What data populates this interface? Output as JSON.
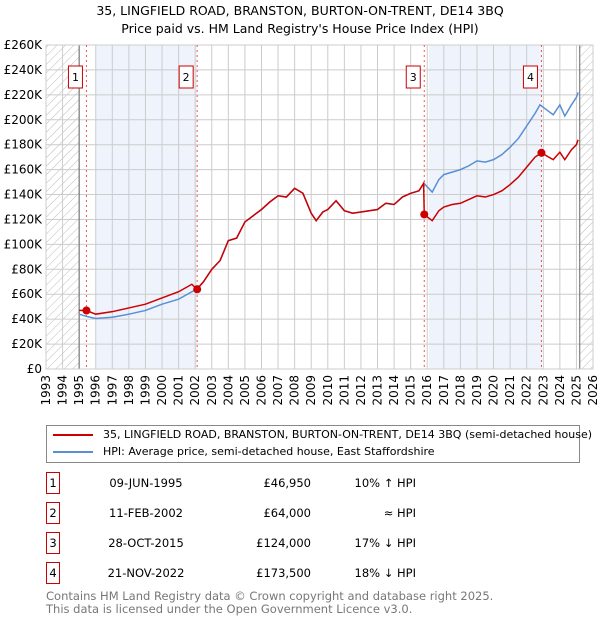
{
  "chart_data": {
    "type": "line",
    "title": "35, LINGFIELD ROAD, BRANSTON, BURTON-ON-TRENT, DE14 3BQ",
    "subtitle": "Price paid vs. HM Land Registry's House Price Index (HPI)",
    "xlim": [
      1993,
      2026
    ],
    "ylim": [
      0,
      260000
    ],
    "grid": true,
    "x_ticks": [
      "1993",
      "1994",
      "1995",
      "1996",
      "1997",
      "1998",
      "1999",
      "2000",
      "2001",
      "2002",
      "2003",
      "2004",
      "2005",
      "2006",
      "2007",
      "2008",
      "2009",
      "2010",
      "2011",
      "2012",
      "2013",
      "2014",
      "2015",
      "2016",
      "2017",
      "2018",
      "2019",
      "2020",
      "2021",
      "2022",
      "2023",
      "2024",
      "2025",
      "2026"
    ],
    "y_ticks": [
      "£0",
      "£20K",
      "£40K",
      "£60K",
      "£80K",
      "£100K",
      "£120K",
      "£140K",
      "£160K",
      "£180K",
      "£200K",
      "£220K",
      "£240K",
      "£260K"
    ],
    "shaded_ranges": [
      [
        1996.0,
        2002.1
      ],
      [
        2016.1,
        2022.9
      ]
    ],
    "hatched_ranges": [
      [
        1993,
        1995.0
      ],
      [
        2025.2,
        2026
      ]
    ],
    "series": [
      {
        "name": "35, LINGFIELD ROAD, BRANSTON, BURTON-ON-TRENT, DE14 3BQ (semi-detached house)",
        "color": "#cc0000",
        "x": [
          1995.0,
          1995.44,
          1996,
          1997,
          1998,
          1999,
          2000,
          2001,
          2001.8,
          2002.1,
          2002.5,
          2003,
          2003.5,
          2004,
          2004.5,
          2005,
          2005.5,
          2006,
          2006.5,
          2007,
          2007.5,
          2008,
          2008.5,
          2009,
          2009.3,
          2009.7,
          2010,
          2010.5,
          2011,
          2011.5,
          2012,
          2012.5,
          2013,
          2013.5,
          2014,
          2014.5,
          2015,
          2015.5,
          2015.78,
          2015.82,
          2016.3,
          2016.7,
          2017,
          2017.5,
          2018,
          2018.5,
          2019,
          2019.5,
          2020,
          2020.5,
          2021,
          2021.5,
          2022,
          2022.5,
          2022.89,
          2023.2,
          2023.6,
          2024,
          2024.3,
          2024.7,
          2025,
          2025.1
        ],
        "y": [
          47000,
          46950,
          44000,
          46000,
          49000,
          52000,
          57000,
          62000,
          68000,
          64000,
          70000,
          80000,
          87000,
          103000,
          105000,
          118000,
          123000,
          128000,
          134000,
          139000,
          138000,
          145000,
          141000,
          125000,
          119000,
          126000,
          128000,
          135000,
          127000,
          125000,
          126000,
          127000,
          128000,
          133000,
          132000,
          138000,
          141000,
          143000,
          149000,
          124000,
          119000,
          127000,
          130000,
          132000,
          133000,
          136000,
          139000,
          138000,
          140000,
          143000,
          148000,
          154000,
          162000,
          170000,
          173500,
          171000,
          168000,
          174000,
          168000,
          176000,
          180000,
          184000
        ]
      },
      {
        "name": "HPI: Average price, semi-detached house, East Staffordshire",
        "color": "#5b8fd4",
        "x": [
          1995.0,
          1995.5,
          1996,
          1997,
          1998,
          1999,
          2000,
          2001,
          2001.8,
          2002.1,
          2002.5,
          2003,
          2003.5,
          2004,
          2004.5,
          2005,
          2005.5,
          2006,
          2006.5,
          2007,
          2007.5,
          2008,
          2008.5,
          2009,
          2009.3,
          2009.7,
          2010,
          2010.5,
          2011,
          2011.5,
          2012,
          2012.5,
          2013,
          2013.5,
          2014,
          2014.5,
          2015,
          2015.5,
          2015.8,
          2016.3,
          2016.7,
          2017,
          2017.5,
          2018,
          2018.5,
          2019,
          2019.5,
          2020,
          2020.5,
          2021,
          2021.5,
          2022,
          2022.5,
          2022.8,
          2023.2,
          2023.6,
          2024,
          2024.3,
          2024.7,
          2025,
          2025.1
        ],
        "y": [
          44000,
          42000,
          40500,
          41500,
          44000,
          47000,
          52000,
          56000,
          62000,
          64000,
          70000,
          80000,
          87000,
          103000,
          105000,
          118000,
          123000,
          128000,
          134000,
          139000,
          138000,
          145000,
          141000,
          125000,
          119000,
          126000,
          128000,
          135000,
          127000,
          125000,
          126000,
          127000,
          128000,
          133000,
          132000,
          138000,
          141000,
          143000,
          149000,
          142000,
          152000,
          156000,
          158000,
          160000,
          163000,
          167000,
          166000,
          168000,
          172000,
          178000,
          185000,
          195000,
          205000,
          212000,
          208000,
          204000,
          212000,
          203000,
          212000,
          218000,
          222000
        ]
      }
    ],
    "sales": [
      {
        "num": "1",
        "x": 1995.44,
        "y": 46950
      },
      {
        "num": "2",
        "x": 2002.12,
        "y": 64000
      },
      {
        "num": "3",
        "x": 2015.82,
        "y": 124000
      },
      {
        "num": "4",
        "x": 2022.89,
        "y": 173500
      }
    ]
  },
  "legend": {
    "property": "35, LINGFIELD ROAD, BRANSTON, BURTON-ON-TRENT, DE14 3BQ (semi-detached house)",
    "hpi": "HPI: Average price, semi-detached house, East Staffordshire"
  },
  "table": [
    {
      "num": "1",
      "date": "09-JUN-1995",
      "price": "£46,950",
      "hpi": "10% ↑ HPI"
    },
    {
      "num": "2",
      "date": "11-FEB-2002",
      "price": "£64,000",
      "hpi": "≈ HPI"
    },
    {
      "num": "3",
      "date": "28-OCT-2015",
      "price": "£124,000",
      "hpi": "17% ↓ HPI"
    },
    {
      "num": "4",
      "date": "21-NOV-2022",
      "price": "£173,500",
      "hpi": "18% ↓ HPI"
    }
  ],
  "footer": {
    "line1": "Contains HM Land Registry data © Crown copyright and database right 2025.",
    "line2": "This data is licensed under the Open Government Licence v3.0."
  }
}
